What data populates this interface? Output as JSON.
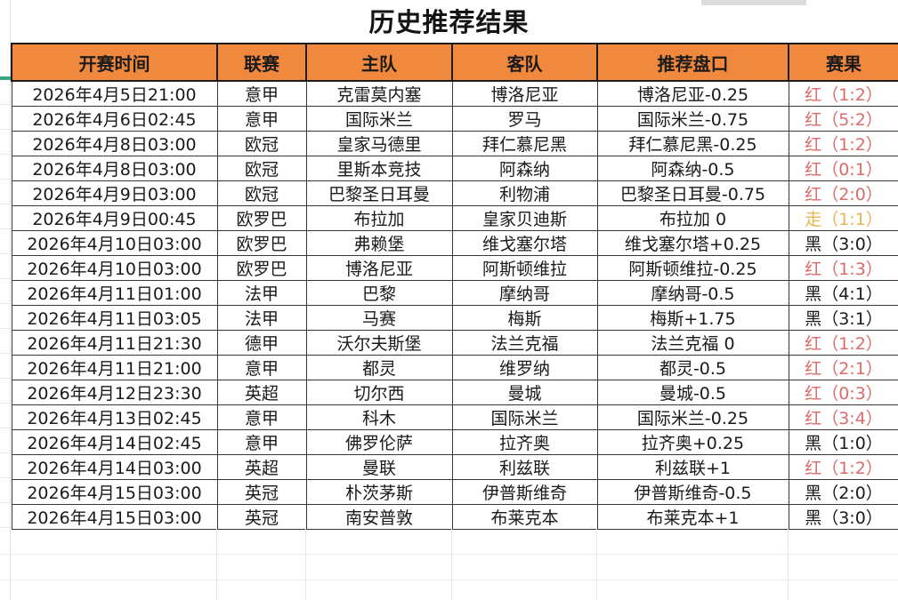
{
  "page_title": "历史推荐结果",
  "colors": {
    "header_bg": "#F0883D",
    "header_text": "#1B1B1B",
    "accent_mark": "#35A782",
    "outcome": {
      "red": "#DC6A6A",
      "draw": "#E8B54F",
      "black": "#1A1A1A"
    }
  },
  "table": {
    "columns": [
      {
        "key": "time",
        "label": "开赛时间"
      },
      {
        "key": "league",
        "label": "联赛"
      },
      {
        "key": "home",
        "label": "主队"
      },
      {
        "key": "away",
        "label": "客队"
      },
      {
        "key": "handicap",
        "label": "推荐盘口"
      },
      {
        "key": "result",
        "label": "赛果"
      }
    ],
    "rows": [
      {
        "time": "2026年4月5日21:00",
        "league": "意甲",
        "home": "克雷莫内塞",
        "away": "博洛尼亚",
        "handicap": "博洛尼亚-0.25",
        "result": "红（1:2）",
        "outcome": "red"
      },
      {
        "time": "2026年4月6日02:45",
        "league": "意甲",
        "home": "国际米兰",
        "away": "罗马",
        "handicap": "国际米兰-0.75",
        "result": "红（5:2）",
        "outcome": "red"
      },
      {
        "time": "2026年4月8日03:00",
        "league": "欧冠",
        "home": "皇家马德里",
        "away": "拜仁慕尼黑",
        "handicap": "拜仁慕尼黑-0.25",
        "result": "红（1:2）",
        "outcome": "red"
      },
      {
        "time": "2026年4月8日03:00",
        "league": "欧冠",
        "home": "里斯本竞技",
        "away": "阿森纳",
        "handicap": "阿森纳-0.5",
        "result": "红（0:1）",
        "outcome": "red"
      },
      {
        "time": "2026年4月9日03:00",
        "league": "欧冠",
        "home": "巴黎圣日耳曼",
        "away": "利物浦",
        "handicap": "巴黎圣日耳曼-0.75",
        "result": "红（2:0）",
        "outcome": "red"
      },
      {
        "time": "2026年4月9日00:45",
        "league": "欧罗巴",
        "home": "布拉加",
        "away": "皇家贝迪斯",
        "handicap": "布拉加 0",
        "result": "走（1:1）",
        "outcome": "draw"
      },
      {
        "time": "2026年4月10日03:00",
        "league": "欧罗巴",
        "home": "弗赖堡",
        "away": "维戈塞尔塔",
        "handicap": "维戈塞尔塔+0.25",
        "result": "黑（3:0）",
        "outcome": "black"
      },
      {
        "time": "2026年4月10日03:00",
        "league": "欧罗巴",
        "home": "博洛尼亚",
        "away": "阿斯顿维拉",
        "handicap": "阿斯顿维拉-0.25",
        "result": "红（1:3）",
        "outcome": "red"
      },
      {
        "time": "2026年4月11日01:00",
        "league": "法甲",
        "home": "巴黎",
        "away": "摩纳哥",
        "handicap": "摩纳哥-0.5",
        "result": "黑（4:1）",
        "outcome": "black"
      },
      {
        "time": "2026年4月11日03:05",
        "league": "法甲",
        "home": "马赛",
        "away": "梅斯",
        "handicap": "梅斯+1.75",
        "result": "黑（3:1）",
        "outcome": "black"
      },
      {
        "time": "2026年4月11日21:30",
        "league": "德甲",
        "home": "沃尔夫斯堡",
        "away": "法兰克福",
        "handicap": "法兰克福 0",
        "result": "红（1:2）",
        "outcome": "red"
      },
      {
        "time": "2026年4月11日21:00",
        "league": "意甲",
        "home": "都灵",
        "away": "维罗纳",
        "handicap": "都灵-0.5",
        "result": "红（2:1）",
        "outcome": "red"
      },
      {
        "time": "2026年4月12日23:30",
        "league": "英超",
        "home": "切尔西",
        "away": "曼城",
        "handicap": "曼城-0.5",
        "result": "红（0:3）",
        "outcome": "red"
      },
      {
        "time": "2026年4月13日02:45",
        "league": "意甲",
        "home": "科木",
        "away": "国际米兰",
        "handicap": "国际米兰-0.25",
        "result": "红（3:4）",
        "outcome": "red"
      },
      {
        "time": "2026年4月14日02:45",
        "league": "意甲",
        "home": "佛罗伦萨",
        "away": "拉齐奥",
        "handicap": "拉齐奥+0.25",
        "result": "黑（1:0）",
        "outcome": "black"
      },
      {
        "time": "2026年4月14日03:00",
        "league": "英超",
        "home": "曼联",
        "away": "利兹联",
        "handicap": "利兹联+1",
        "result": "红（1:2）",
        "outcome": "red"
      },
      {
        "time": "2026年4月15日03:00",
        "league": "英冠",
        "home": "朴茨茅斯",
        "away": "伊普斯维奇",
        "handicap": "伊普斯维奇-0.5",
        "result": "黑（2:0）",
        "outcome": "black"
      },
      {
        "time": "2026年4月15日03:00",
        "league": "英冠",
        "home": "南安普敦",
        "away": "布莱克本",
        "handicap": "布莱克本+1",
        "result": "黑（3:0）",
        "outcome": "black"
      }
    ]
  }
}
